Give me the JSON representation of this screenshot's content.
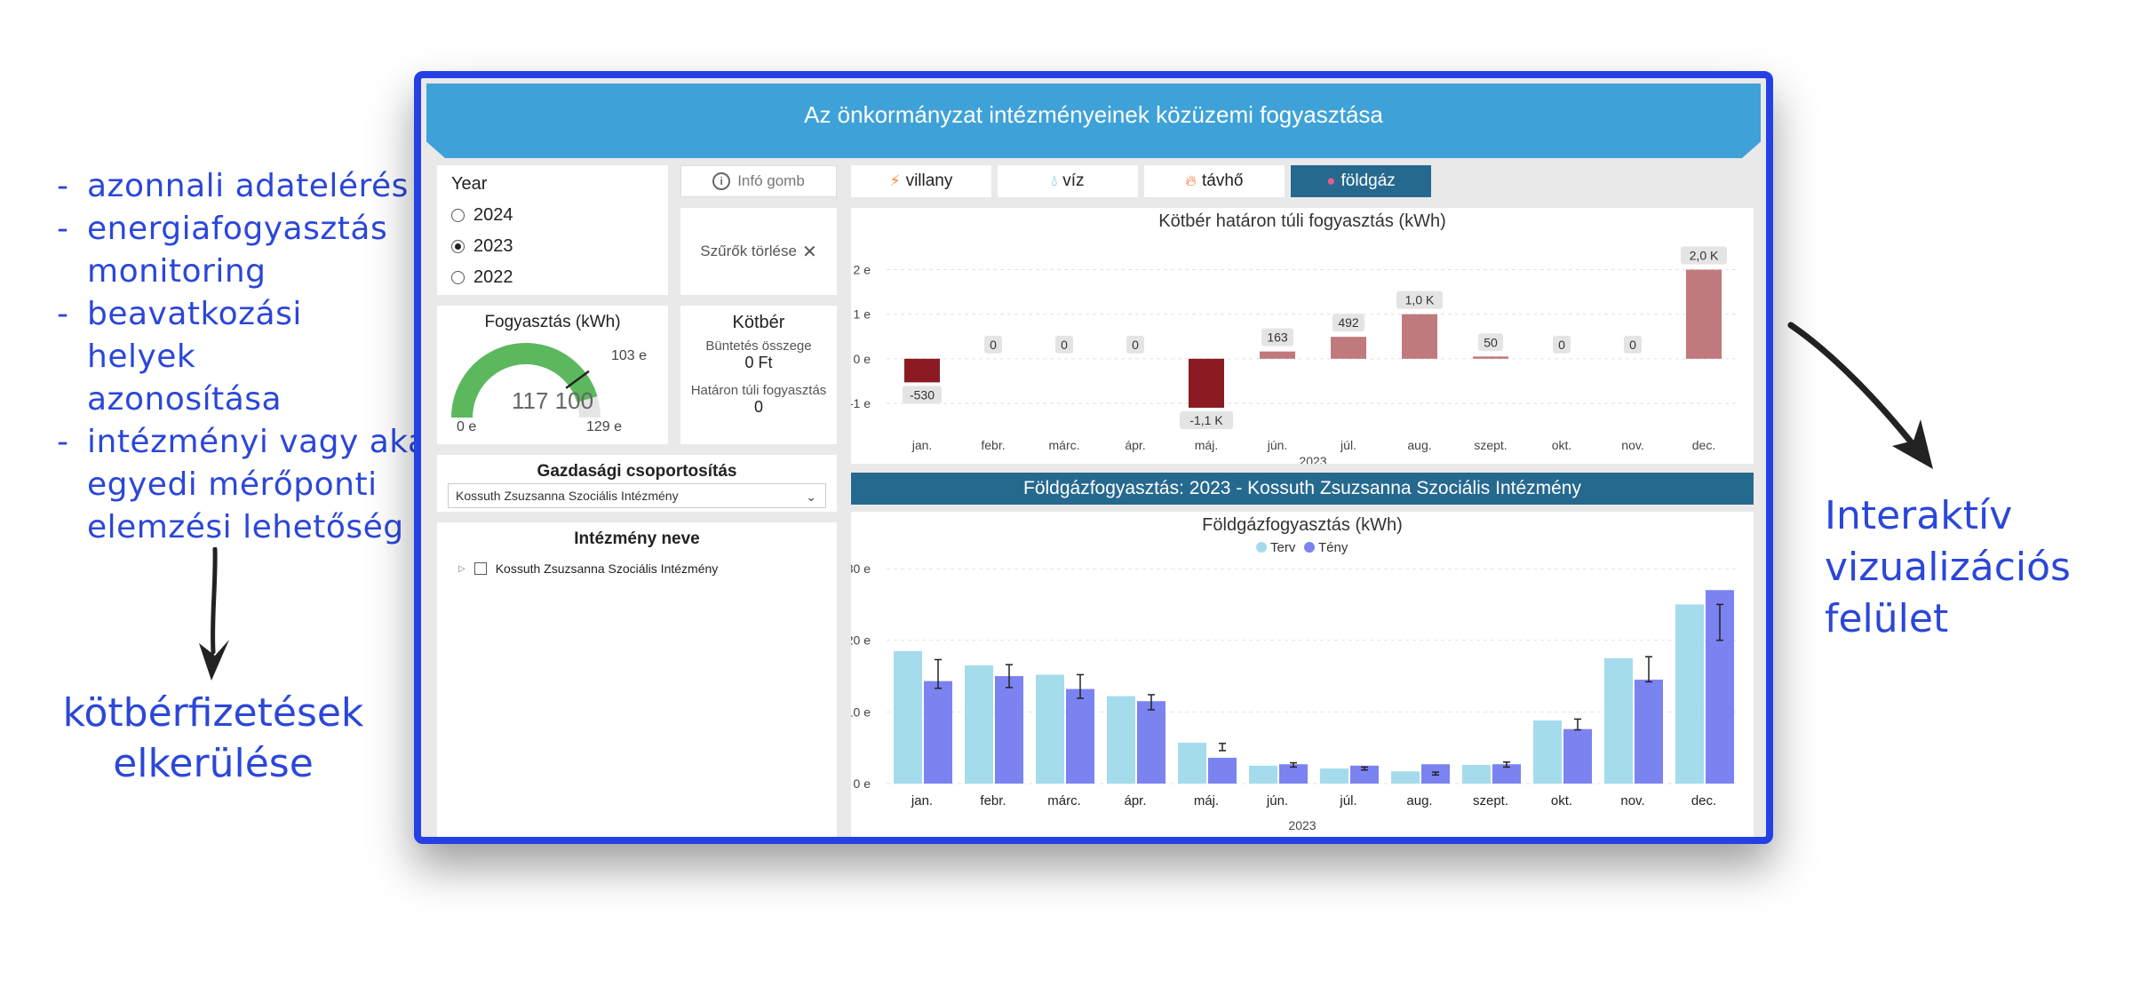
{
  "annotations": {
    "bullets": [
      "azonnali adatelérés",
      "energiafogyasztás monitoring",
      "beavatkozási helyek azonosítása",
      "intézményi vagy akár egyedi mérőponti elemzési lehetőség"
    ],
    "bullet_marker": "-",
    "left_caption": [
      "kötbérfizetések",
      "elkerülése"
    ],
    "right_caption": [
      "Interaktív",
      "vizualizációs",
      "felület"
    ]
  },
  "dashboard": {
    "title": "Az önkormányzat intézményeinek közüzemi fogyasztása",
    "year_filter": {
      "label": "Year",
      "options": [
        "2024",
        "2023",
        "2022"
      ],
      "selected": "2023"
    },
    "info_button": "Infó gomb",
    "clear_filters": "Szűrők törlése",
    "tabs": [
      {
        "label": "villany",
        "icon": "lightning-icon",
        "color": "#f28c28"
      },
      {
        "label": "víz",
        "icon": "water-drop-icon",
        "color": "#3ea2d8"
      },
      {
        "label": "távhő",
        "icon": "flame-icon",
        "color": "#f26522"
      },
      {
        "label": "földgáz",
        "icon": "gas-bottle-icon",
        "color": "#e85a8a"
      }
    ],
    "active_tab": "földgáz",
    "gauge": {
      "title": "Fogyasztás (kWh)",
      "value_label": "117 100",
      "min_label": "0 e",
      "max_label": "129 e",
      "target_label": "103 e",
      "value": 117100,
      "min": 0,
      "max": 129000,
      "target": 103000,
      "fill_color": "#5cb85c",
      "track_color": "#e5e5e5"
    },
    "kotber": {
      "title": "Kötbér",
      "penalty_label": "Büntetés összege",
      "penalty_value": "0 Ft",
      "excess_label": "Határon túli fogyasztás",
      "excess_value": "0"
    },
    "grouping": {
      "title": "Gazdasági csoportosítás",
      "selected": "Kossuth Zsuzsanna Szociális Intézmény"
    },
    "institution": {
      "title": "Intézmény neve",
      "items": [
        "Kossuth Zsuzsanna Szociális Intézmény"
      ]
    },
    "section_banner": "Földgázfogyasztás: 2023 - Kossuth Zsuzsanna Szociális Intézmény"
  },
  "chart_data": [
    {
      "type": "bar",
      "title": "Kötbér határon túli fogyasztás (kWh)",
      "categories": [
        "jan.",
        "febr.",
        "márc.",
        "ápr.",
        "máj.",
        "jún.",
        "júl.",
        "aug.",
        "szept.",
        "okt.",
        "nov.",
        "dec."
      ],
      "values": [
        -530,
        0,
        0,
        0,
        -1100,
        163,
        492,
        1000,
        50,
        0,
        0,
        2000
      ],
      "data_labels": [
        "-530",
        "0",
        "0",
        "0",
        "-1,1 K",
        "163",
        "492",
        "1,0 K",
        "50",
        "0",
        "0",
        "2,0 K"
      ],
      "xlabel": "2023",
      "y_ticks": [
        2000,
        1000,
        0,
        -1000
      ],
      "y_tick_labels": [
        "2 e",
        "1 e",
        "0 e",
        "-1 e"
      ],
      "ylim": [
        -1400,
        2350
      ],
      "colors": {
        "negative": "#8b1a22",
        "positive": "#c0797c"
      },
      "grid": true
    },
    {
      "type": "bar",
      "title": "Földgázfogyasztás (kWh)",
      "categories": [
        "jan.",
        "febr.",
        "márc.",
        "ápr.",
        "máj.",
        "jún.",
        "júl.",
        "aug.",
        "szept.",
        "okt.",
        "nov.",
        "dec."
      ],
      "series": [
        {
          "name": "Terv",
          "color": "#a4dcec",
          "values": [
            18500,
            16500,
            15200,
            12200,
            5700,
            2500,
            2100,
            1700,
            2600,
            8800,
            17500,
            25000
          ]
        },
        {
          "name": "Tény",
          "color": "#7b83f0",
          "values": [
            14300,
            15000,
            13200,
            11500,
            3600,
            2700,
            2500,
            2700,
            2700,
            7600,
            14500,
            27000
          ],
          "error_bars": [
            [
              17300,
              13300
            ],
            [
              16600,
              13400
            ],
            [
              15200,
              11900
            ],
            [
              12400,
              10300
            ],
            [
              5600,
              4600
            ],
            [
              2900,
              2300
            ],
            [
              2300,
              1900
            ],
            [
              1600,
              1200
            ],
            [
              3000,
              2300
            ],
            [
              9000,
              7500
            ],
            [
              17700,
              14200
            ],
            [
              25000,
              20000
            ]
          ]
        }
      ],
      "xlabel": "2023",
      "y_ticks": [
        30000,
        20000,
        10000,
        0
      ],
      "y_tick_labels": [
        "30 e",
        "20 e",
        "10 e",
        "0 e"
      ],
      "ylim": [
        0,
        31000
      ],
      "legend": "top-center",
      "grid": true
    }
  ]
}
